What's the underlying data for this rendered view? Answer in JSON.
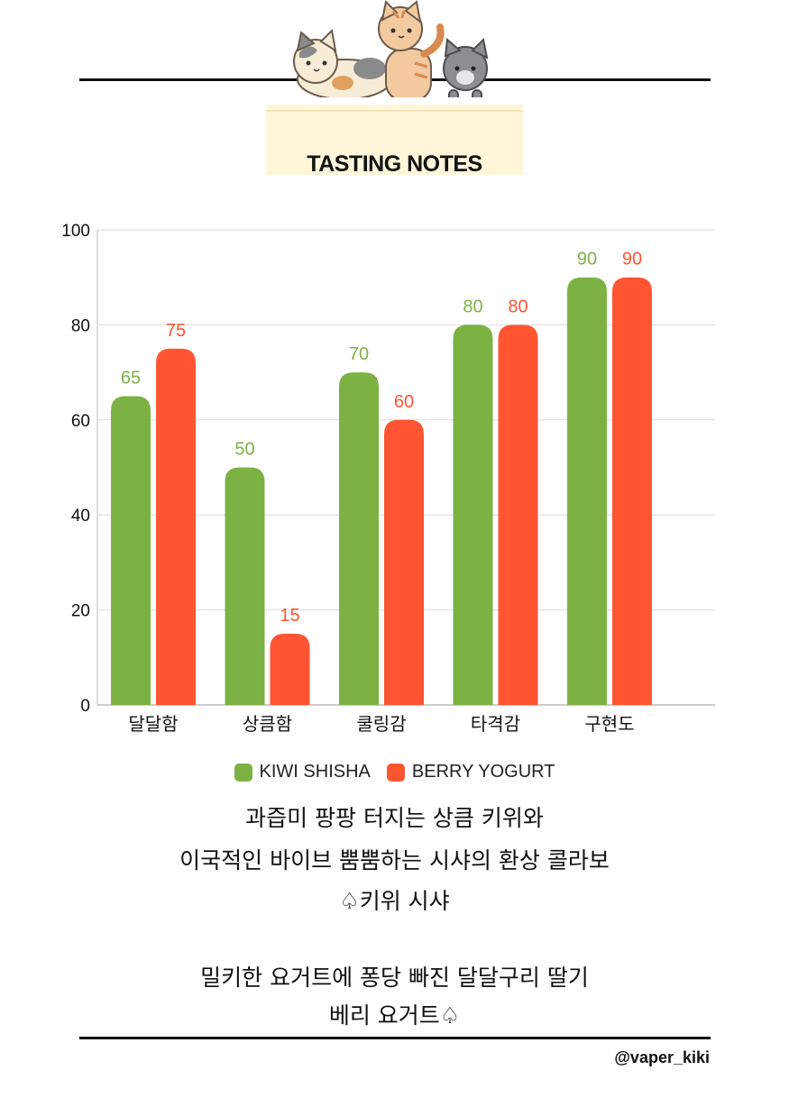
{
  "banner": {
    "title": "TASTING NOTES"
  },
  "chart_data": {
    "type": "bar",
    "categories": [
      "달달함",
      "상큼함",
      "쿨링감",
      "타격감",
      "구현도"
    ],
    "series": [
      {
        "name": "KIWI SHISHA",
        "color": "#7cb244",
        "values": [
          65,
          50,
          70,
          80,
          90
        ]
      },
      {
        "name": "BERRY YOGURT",
        "color": "#ff5533",
        "values": [
          75,
          15,
          60,
          80,
          90
        ]
      }
    ],
    "ylim": [
      0,
      100
    ],
    "yticks": [
      0,
      20,
      40,
      60,
      80,
      100
    ],
    "grid": true,
    "data_labels": true,
    "legend_position": "bottom"
  },
  "description": {
    "lines": [
      "과즙미 팡팡 터지는 상큼 키위와",
      "이국적인 바이브 뿜뿜하는 시샤의 환상 콜라보",
      "♤키위 시샤",
      "밀키한 요거트에 퐁당 빠진 달달구리 딸기",
      "베리 요거트♤"
    ]
  },
  "footer": {
    "handle": "@vaper_kiki"
  }
}
